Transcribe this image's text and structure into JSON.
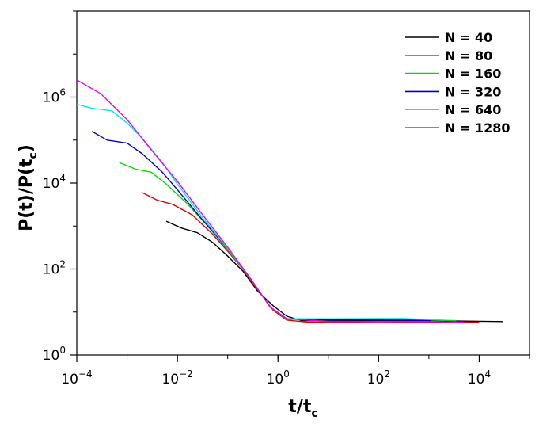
{
  "chart_data": {
    "type": "line",
    "title": "",
    "xlabel": {
      "main": "t/t",
      "sub": "c"
    },
    "ylabel": {
      "p1": "P(t)/P(t",
      "sub": "c",
      "p2": ")"
    },
    "x_scale": "log",
    "y_scale": "log",
    "xlim": [
      0.0001,
      100000
    ],
    "ylim": [
      1,
      100000000
    ],
    "x_ticks": [
      {
        "value": 0.0001,
        "base": "10",
        "exp": "−4"
      },
      {
        "value": 0.01,
        "base": "10",
        "exp": "−2"
      },
      {
        "value": 1,
        "base": "10",
        "exp": "0"
      },
      {
        "value": 100,
        "base": "10",
        "exp": "2"
      },
      {
        "value": 10000,
        "base": "10",
        "exp": "4"
      }
    ],
    "y_ticks": [
      {
        "value": 1,
        "base": "10",
        "exp": "0"
      },
      {
        "value": 100,
        "base": "10",
        "exp": "2"
      },
      {
        "value": 10000,
        "base": "10",
        "exp": "4"
      },
      {
        "value": 1000000,
        "base": "10",
        "exp": "6"
      }
    ],
    "legend_position": "top-right",
    "series": [
      {
        "name": "N = 40",
        "color": "#000000",
        "x": [
          0.006,
          0.012,
          0.025,
          0.05,
          0.1,
          0.2,
          0.4,
          0.8,
          1.5,
          3,
          10,
          100,
          1000,
          30000
        ],
        "y": [
          1300,
          900,
          700,
          420,
          200,
          90,
          30,
          14,
          8,
          6.3,
          6.2,
          6.3,
          6.3,
          6.0
        ]
      },
      {
        "name": "N = 80",
        "color": "#e00000",
        "x": [
          0.002,
          0.004,
          0.008,
          0.02,
          0.05,
          0.1,
          0.2,
          0.4,
          0.8,
          1.5,
          4,
          100,
          10000
        ],
        "y": [
          6000,
          4000,
          3200,
          1800,
          650,
          260,
          100,
          32,
          11,
          6.5,
          5.8,
          5.9,
          5.8
        ]
      },
      {
        "name": "N = 160",
        "color": "#00dd00",
        "x": [
          0.0007,
          0.0015,
          0.003,
          0.006,
          0.015,
          0.04,
          0.1,
          0.3,
          0.7,
          1.5,
          10,
          300,
          3500
        ],
        "y": [
          30000,
          21000,
          18000,
          9500,
          3500,
          1000,
          280,
          55,
          13,
          6.8,
          6.8,
          6.7,
          6.3
        ]
      },
      {
        "name": "N = 320",
        "color": "#0000cc",
        "x": [
          0.0002,
          0.0004,
          0.001,
          0.002,
          0.005,
          0.01,
          0.03,
          0.1,
          0.3,
          0.7,
          1.5,
          10,
          300,
          1100
        ],
        "y": [
          160000,
          100000,
          85000,
          48000,
          18000,
          7000,
          1500,
          300,
          55,
          13,
          7,
          6.6,
          6.5,
          6.3
        ]
      },
      {
        "name": "N = 640",
        "color": "#00e8e8",
        "x": [
          0.0001,
          0.0002,
          0.0005,
          0.001,
          0.002,
          0.005,
          0.01,
          0.03,
          0.1,
          0.3,
          0.7,
          1.5,
          10,
          300,
          2000
        ],
        "y": [
          680000,
          550000,
          480000,
          250000,
          110000,
          30000,
          9500,
          1700,
          300,
          55,
          13,
          7,
          7,
          7.1,
          6.5
        ]
      },
      {
        "name": "N = 1280",
        "color": "#ee00ee",
        "x": [
          0.0001,
          0.0003,
          0.001,
          0.003,
          0.01,
          0.03,
          0.1,
          0.3,
          0.7,
          1.5,
          10,
          1000,
          5000
        ],
        "y": [
          2500000,
          1200000,
          300000,
          60000,
          11000,
          2000,
          320,
          55,
          13,
          7,
          6,
          6,
          5.8
        ]
      }
    ]
  }
}
